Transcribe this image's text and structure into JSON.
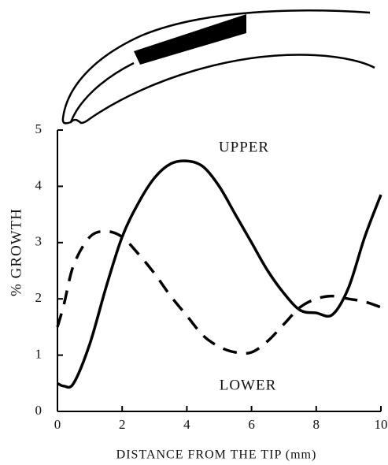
{
  "chart_data": {
    "type": "line",
    "x": [
      0,
      0.2,
      0.5,
      1,
      1.5,
      2,
      2.5,
      3,
      3.5,
      4,
      4.5,
      5,
      5.5,
      6,
      6.5,
      7,
      7.5,
      8,
      8.5,
      9,
      9.5,
      10
    ],
    "series": [
      {
        "name": "UPPER",
        "color": "#000000",
        "line_style": "solid",
        "values": [
          0.5,
          0.45,
          0.5,
          1.2,
          2.2,
          3.1,
          3.7,
          4.15,
          4.4,
          4.45,
          4.35,
          4.0,
          3.5,
          3.0,
          2.5,
          2.1,
          1.8,
          1.75,
          1.72,
          2.2,
          3.1,
          3.85
        ]
      },
      {
        "name": "LOWER",
        "color": "#000000",
        "line_style": "dashed",
        "values": [
          1.5,
          1.9,
          2.6,
          3.1,
          3.2,
          3.1,
          2.8,
          2.45,
          2.05,
          1.7,
          1.35,
          1.15,
          1.05,
          1.05,
          1.25,
          1.55,
          1.85,
          2.0,
          2.05,
          2.0,
          1.95,
          1.85
        ]
      }
    ],
    "xlabel": "DISTANCE FROM THE TIP (mm)",
    "ylabel": "% GROWTH",
    "xlim": [
      0,
      10
    ],
    "xticks": [
      0,
      2,
      4,
      6,
      8,
      10
    ],
    "ylim": [
      0,
      5
    ],
    "yticks": [
      0,
      1,
      2,
      3,
      4,
      5
    ],
    "grid": false
  }
}
